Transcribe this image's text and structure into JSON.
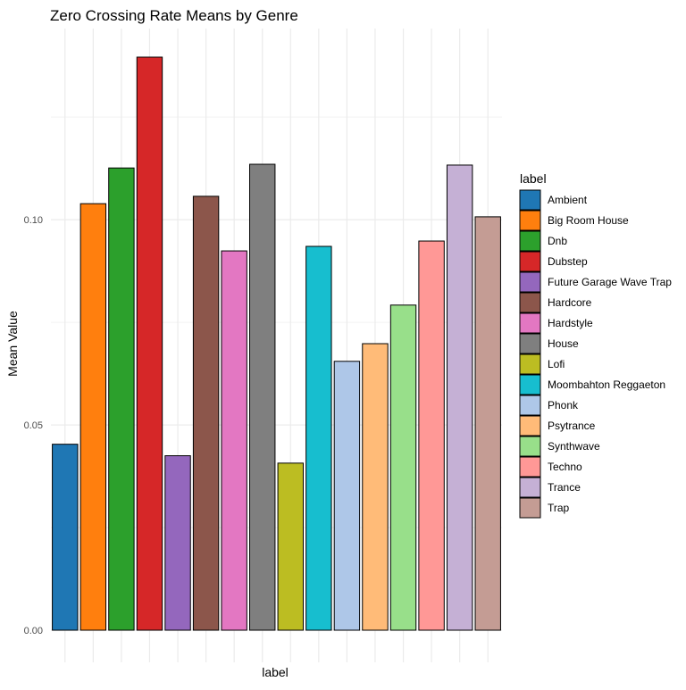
{
  "chart_data": {
    "type": "bar",
    "title": "Zero Crossing Rate Means by Genre",
    "xlabel": "label",
    "ylabel": "Mean Value",
    "ylim": [
      0,
      0.1396
    ],
    "yticks": [
      0.0,
      0.05,
      0.1
    ],
    "ytick_labels": [
      "0.00",
      "0.05",
      "0.10"
    ],
    "grid": true,
    "legend": {
      "title": "label",
      "position": "right"
    },
    "categories": [
      "Ambient",
      "Big Room House",
      "Dnb",
      "Dubstep",
      "Future Garage Wave Trap",
      "Hardcore",
      "Hardstyle",
      "House",
      "Lofi",
      "Moombahton Reggaeton",
      "Phonk",
      "Psytrance",
      "Synthwave",
      "Techno",
      "Trance",
      "Trap"
    ],
    "values": [
      0.0453,
      0.1039,
      0.1126,
      0.1396,
      0.0425,
      0.1057,
      0.0924,
      0.1135,
      0.0407,
      0.0935,
      0.0655,
      0.0698,
      0.0792,
      0.0948,
      0.1133,
      0.1007
    ],
    "colors": [
      "#1f77b4",
      "#ff7f0e",
      "#2ca02c",
      "#d62728",
      "#9467bd",
      "#8c564b",
      "#e377c2",
      "#7f7f7f",
      "#bcbd22",
      "#17becf",
      "#aec7e8",
      "#ffbb78",
      "#98df8a",
      "#ff9896",
      "#c5b0d5",
      "#c49c94"
    ]
  }
}
